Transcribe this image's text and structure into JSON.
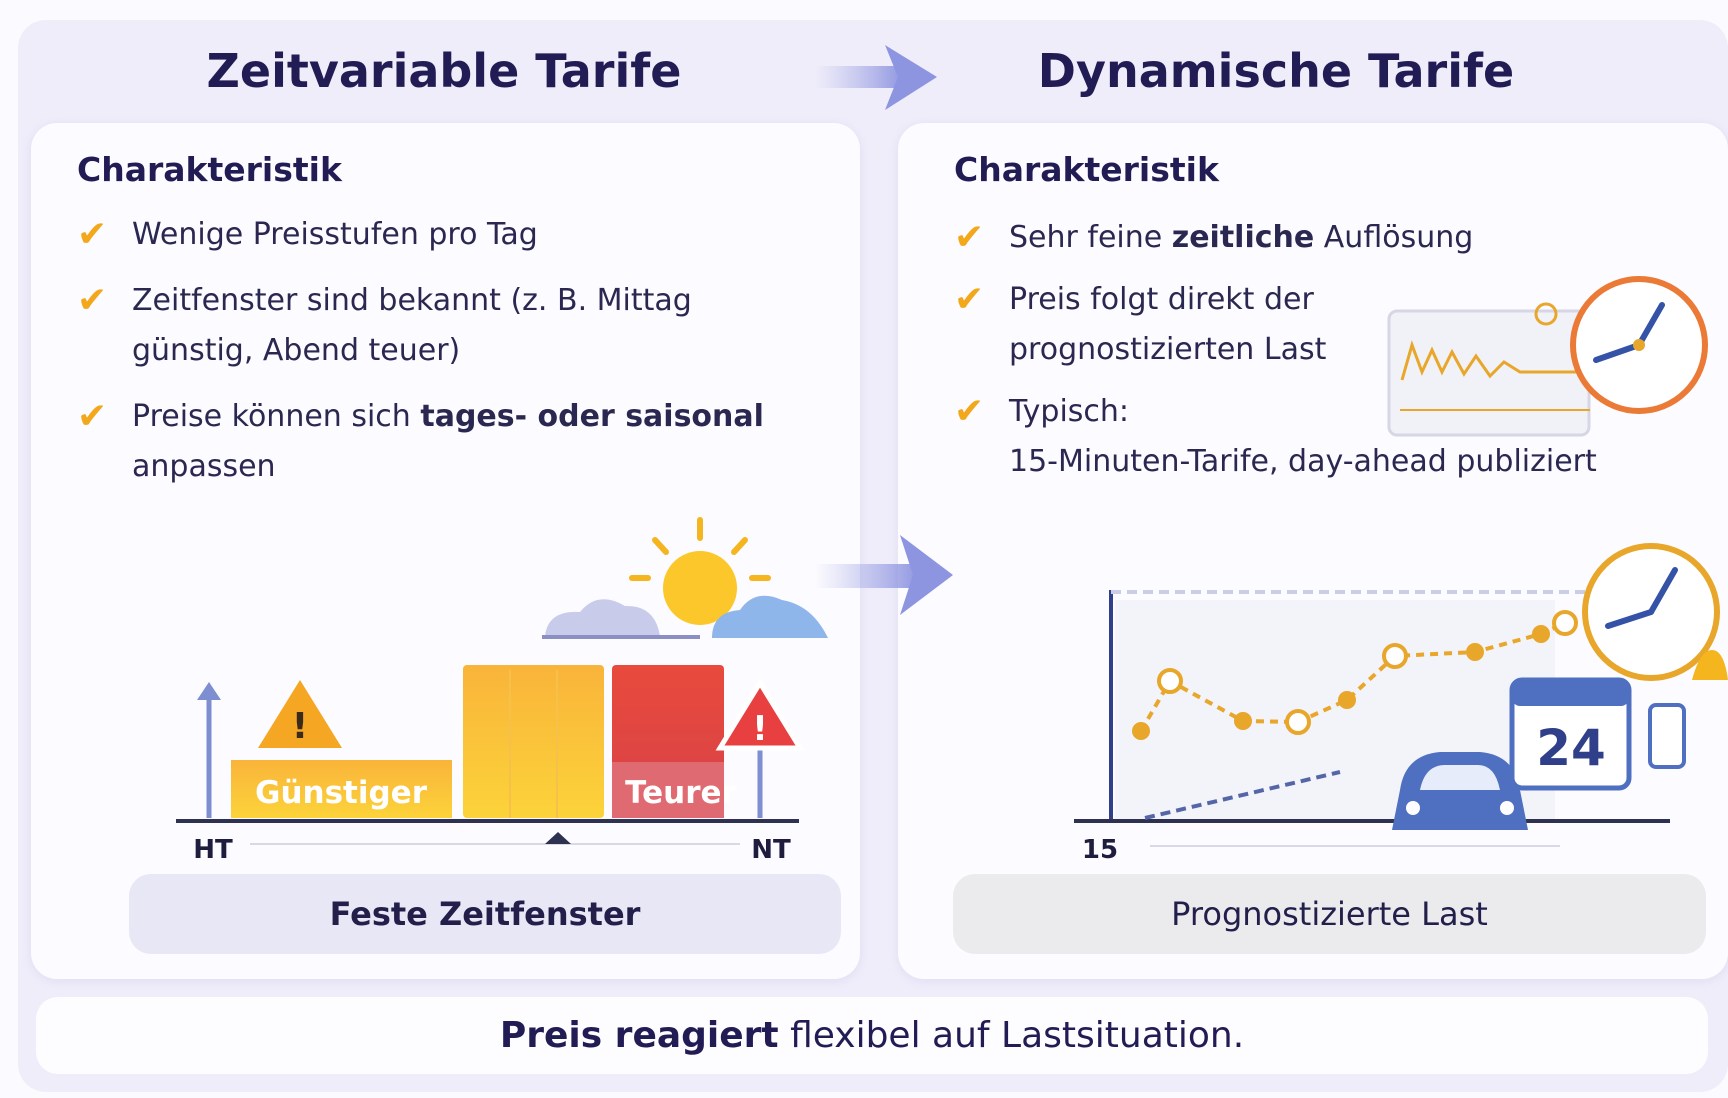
{
  "left": {
    "title": "Zeitvariable Tarife",
    "heading": "Charakteristik",
    "bullets": [
      [
        {
          "text": "Wenige Preisstufen pro Tag",
          "bold": false
        }
      ],
      [
        {
          "text": "Zeitfenster sind bekannt (z. B. Mittag günstig, Abend teuer)",
          "bold": false
        }
      ],
      [
        {
          "text": "Preise können sich ",
          "bold": false
        },
        {
          "text": "tages- oder saisonal",
          "bold": true
        },
        {
          "text": " anpassen",
          "bold": false
        }
      ]
    ],
    "illustration": {
      "cheap": "Günstiger",
      "expensive": "Teurer",
      "start": "HT",
      "end": "NT"
    },
    "caption": "Feste Zeitfenster"
  },
  "right": {
    "title": "Dynamische Tarife",
    "heading": "Charakteristik",
    "bullets": [
      [
        {
          "text": "Sehr feine ",
          "bold": false
        },
        {
          "text": "zeitliche",
          "bold": true
        },
        {
          "text": " Auflösung",
          "bold": false
        }
      ],
      [
        {
          "text": "Preis folgt direkt der prognostizierten Last",
          "bold": false
        }
      ],
      [
        {
          "text": "Typisch:\n15-Minuten-Tarife, day-ahead publiziert",
          "bold": false
        }
      ]
    ],
    "illustration": {
      "axis_label": "15",
      "calendar": "24"
    },
    "caption": "Prognostizierte Last"
  },
  "footer": [
    {
      "text": "Preis reagiert",
      "bold": true
    },
    {
      "text": " flexibel auf Lastsituation.",
      "bold": false
    }
  ]
}
